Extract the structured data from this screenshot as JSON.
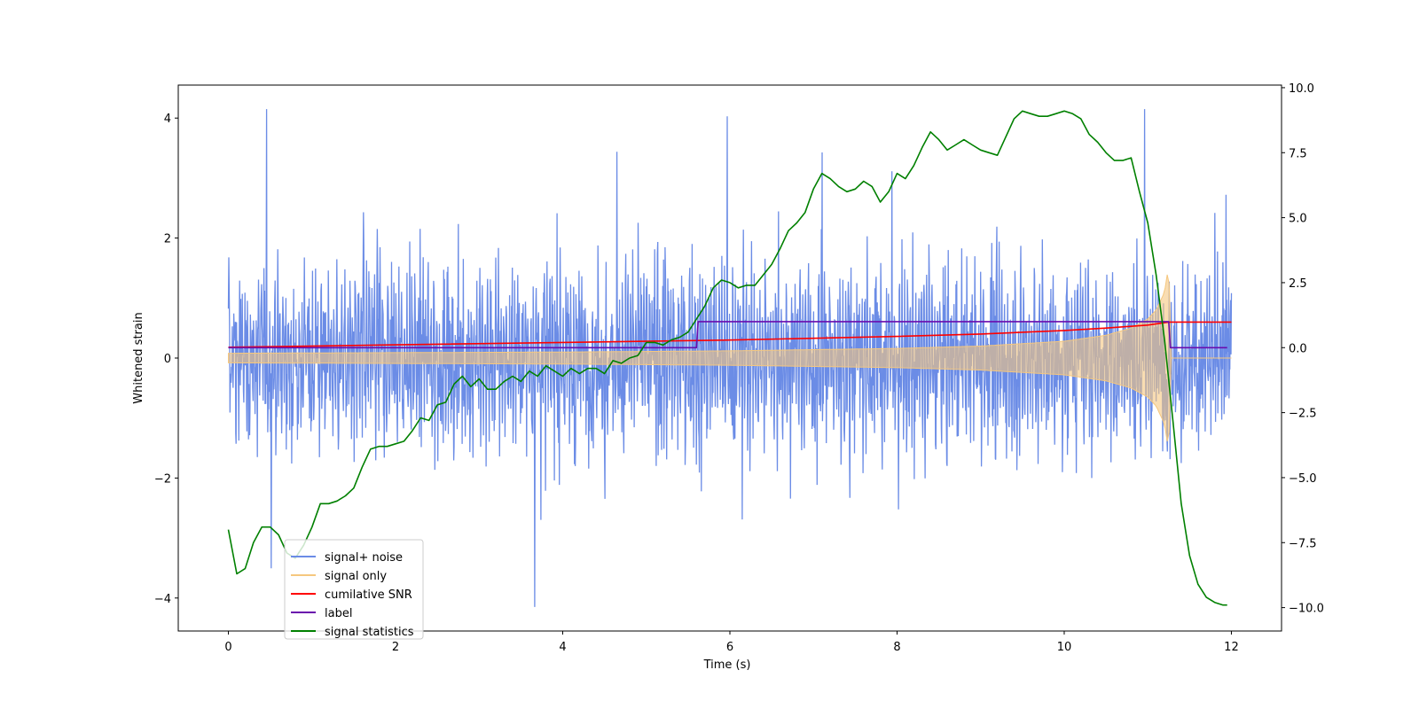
{
  "chart_data": {
    "type": "line",
    "title": "",
    "xlabel": "Time (s)",
    "ylabel": "Whitened strain",
    "xlim": [
      -0.6,
      12.6
    ],
    "ylim": [
      -4.55,
      4.55
    ],
    "y2lim": [
      -10.9,
      10.1
    ],
    "x_ticks": [
      0,
      2,
      4,
      6,
      8,
      10,
      12
    ],
    "x_tick_labels": [
      "0",
      "2",
      "4",
      "6",
      "8",
      "10",
      "12"
    ],
    "y_ticks": [
      4,
      2,
      0,
      -2,
      -4
    ],
    "y_tick_labels": [
      "4",
      "2",
      "0",
      "−2",
      "−4"
    ],
    "y2_ticks": [
      10,
      7.5,
      5,
      2.5,
      0,
      -2.5,
      -5,
      -7.5,
      -10
    ],
    "y2_tick_labels": [
      "10.0",
      "7.5",
      "5.0",
      "2.5",
      "0.0",
      "−2.5",
      "−5.0",
      "−7.5",
      "−10.0"
    ],
    "legend_position": "lower-left",
    "series": [
      {
        "name": "signal+ noise",
        "color": "#6b8ce6",
        "axis": "left",
        "kind": "noise",
        "duration": 12,
        "typical_range": [
          -2.6,
          2.6
        ],
        "peak_range": [
          -4.15,
          4.15
        ]
      },
      {
        "name": "signal only",
        "color": "#f5c77e",
        "axis": "left",
        "kind": "chirp",
        "x": [
          0,
          2,
          4,
          6,
          8,
          9,
          10,
          10.5,
          10.8,
          11,
          11.1,
          11.2,
          11.25,
          11.28,
          12
        ],
        "envelope": [
          0.08,
          0.09,
          0.1,
          0.12,
          0.16,
          0.2,
          0.28,
          0.38,
          0.5,
          0.65,
          0.8,
          1.1,
          1.55,
          0,
          0
        ]
      },
      {
        "name": "cumilative SNR",
        "color": "#ff0000",
        "axis": "left",
        "x": [
          0,
          2,
          4,
          6,
          8,
          9,
          10,
          10.5,
          11,
          11.25,
          12
        ],
        "values": [
          0.18,
          0.22,
          0.26,
          0.3,
          0.36,
          0.4,
          0.46,
          0.5,
          0.55,
          0.6,
          0.6
        ]
      },
      {
        "name": "label",
        "color": "#6a0dad",
        "axis": "right",
        "x": [
          0,
          5.6,
          5.62,
          11.25,
          11.27,
          11.95
        ],
        "values": [
          0,
          0,
          1,
          1,
          0,
          0
        ]
      },
      {
        "name": "signal statistics",
        "color": "#008000",
        "axis": "right",
        "x": [
          0,
          0.1,
          0.2,
          0.3,
          0.4,
          0.5,
          0.6,
          0.7,
          0.8,
          0.9,
          1.0,
          1.1,
          1.2,
          1.3,
          1.4,
          1.5,
          1.6,
          1.7,
          1.8,
          1.9,
          2.0,
          2.1,
          2.2,
          2.3,
          2.4,
          2.5,
          2.6,
          2.7,
          2.8,
          2.9,
          3.0,
          3.1,
          3.2,
          3.3,
          3.4,
          3.5,
          3.6,
          3.7,
          3.8,
          3.9,
          4.0,
          4.1,
          4.2,
          4.3,
          4.4,
          4.5,
          4.6,
          4.7,
          4.8,
          4.9,
          5.0,
          5.1,
          5.2,
          5.3,
          5.4,
          5.5,
          5.6,
          5.7,
          5.8,
          5.9,
          6.0,
          6.1,
          6.2,
          6.3,
          6.4,
          6.5,
          6.6,
          6.7,
          6.8,
          6.9,
          7.0,
          7.1,
          7.2,
          7.3,
          7.4,
          7.5,
          7.6,
          7.7,
          7.8,
          7.9,
          8.0,
          8.1,
          8.2,
          8.3,
          8.4,
          8.5,
          8.6,
          8.7,
          8.8,
          8.9,
          9.0,
          9.1,
          9.2,
          9.3,
          9.4,
          9.5,
          9.6,
          9.7,
          9.8,
          9.9,
          10.0,
          10.1,
          10.2,
          10.3,
          10.4,
          10.5,
          10.6,
          10.7,
          10.8,
          10.9,
          11.0,
          11.1,
          11.2,
          11.3,
          11.4,
          11.5,
          11.6,
          11.7,
          11.8,
          11.9,
          11.95
        ],
        "values": [
          -7.0,
          -8.7,
          -8.5,
          -7.5,
          -6.9,
          -6.9,
          -7.2,
          -7.9,
          -8.1,
          -7.6,
          -6.9,
          -6.0,
          -6.0,
          -5.9,
          -5.7,
          -5.4,
          -4.6,
          -3.9,
          -3.8,
          -3.8,
          -3.7,
          -3.6,
          -3.2,
          -2.7,
          -2.8,
          -2.2,
          -2.1,
          -1.4,
          -1.1,
          -1.5,
          -1.2,
          -1.6,
          -1.6,
          -1.3,
          -1.1,
          -1.3,
          -0.9,
          -1.1,
          -0.7,
          -0.9,
          -1.1,
          -0.8,
          -1.0,
          -0.8,
          -0.8,
          -1.0,
          -0.5,
          -0.6,
          -0.4,
          -0.3,
          0.2,
          0.2,
          0.1,
          0.3,
          0.4,
          0.6,
          1.1,
          1.6,
          2.3,
          2.6,
          2.5,
          2.3,
          2.4,
          2.4,
          2.8,
          3.2,
          3.8,
          4.5,
          4.8,
          5.2,
          6.1,
          6.7,
          6.5,
          6.2,
          6.0,
          6.1,
          6.4,
          6.2,
          5.6,
          6.0,
          6.7,
          6.5,
          7.0,
          7.7,
          8.3,
          8.0,
          7.6,
          7.8,
          8.0,
          7.8,
          7.6,
          7.5,
          7.4,
          8.1,
          8.8,
          9.1,
          9.0,
          8.9,
          8.9,
          9.0,
          9.1,
          9.0,
          8.8,
          8.2,
          7.9,
          7.5,
          7.2,
          7.2,
          7.3,
          6.0,
          4.8,
          2.8,
          0.3,
          -2.8,
          -6.0,
          -8.0,
          -9.1,
          -9.6,
          -9.8,
          -9.9,
          -9.9
        ]
      }
    ]
  }
}
